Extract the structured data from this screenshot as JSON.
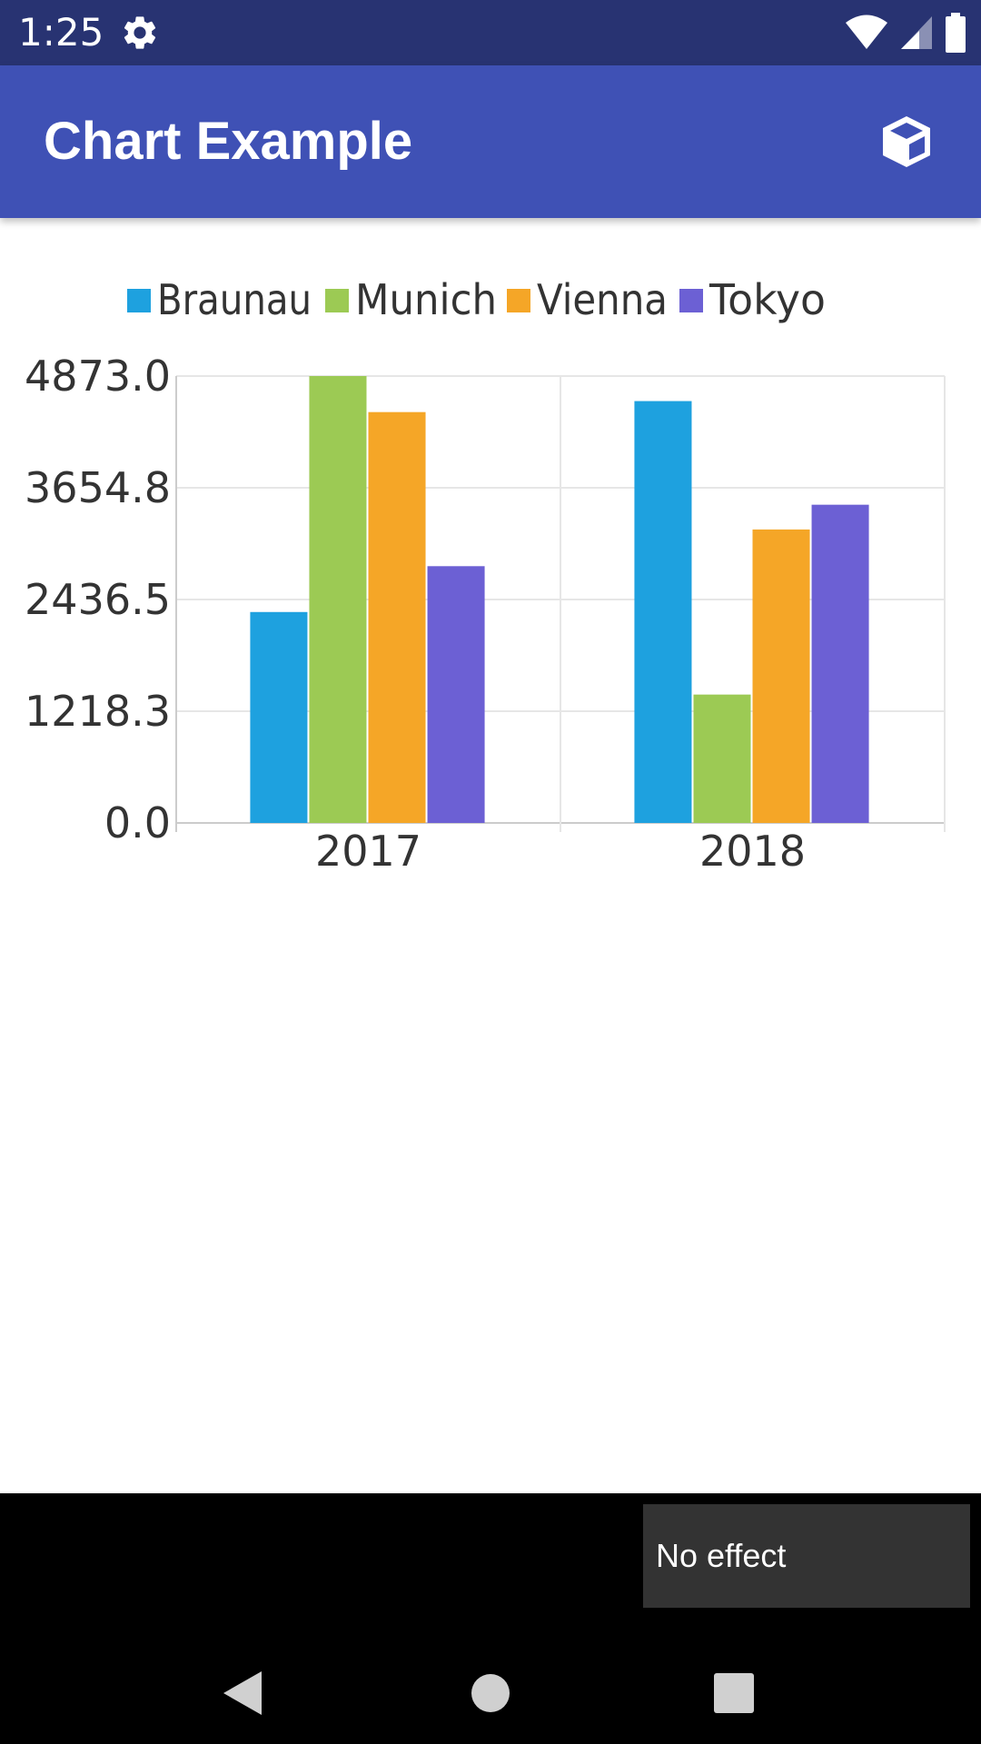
{
  "status_bar": {
    "time": "1:25",
    "icons": [
      "gear-icon",
      "wifi-icon",
      "signal-icon",
      "battery-icon"
    ]
  },
  "app_bar": {
    "title": "Chart Example",
    "action_icon": "cube-icon"
  },
  "chart_data": {
    "type": "bar",
    "categories": [
      "2017",
      "2018"
    ],
    "series": [
      {
        "name": "Braunau",
        "color": "#1ea1df",
        "values": [
          2300,
          4600
        ]
      },
      {
        "name": "Munich",
        "color": "#9cca54",
        "values": [
          4873,
          1400
        ]
      },
      {
        "name": "Vienna",
        "color": "#f5a627",
        "values": [
          4480,
          3200
        ]
      },
      {
        "name": "Tokyo",
        "color": "#6c60d4",
        "values": [
          2800,
          3470
        ]
      }
    ],
    "ylim": [
      0,
      4873
    ],
    "yticks": [
      "0.0",
      "1218.3",
      "2436.5",
      "3654.8",
      "4873.0"
    ],
    "grid": true,
    "legend": "top-center"
  },
  "toast": {
    "text": "No effect"
  },
  "nav_bar": {
    "back_icon": "back-triangle-icon",
    "home_icon": "home-circle-icon",
    "recent_icon": "recent-square-icon"
  }
}
